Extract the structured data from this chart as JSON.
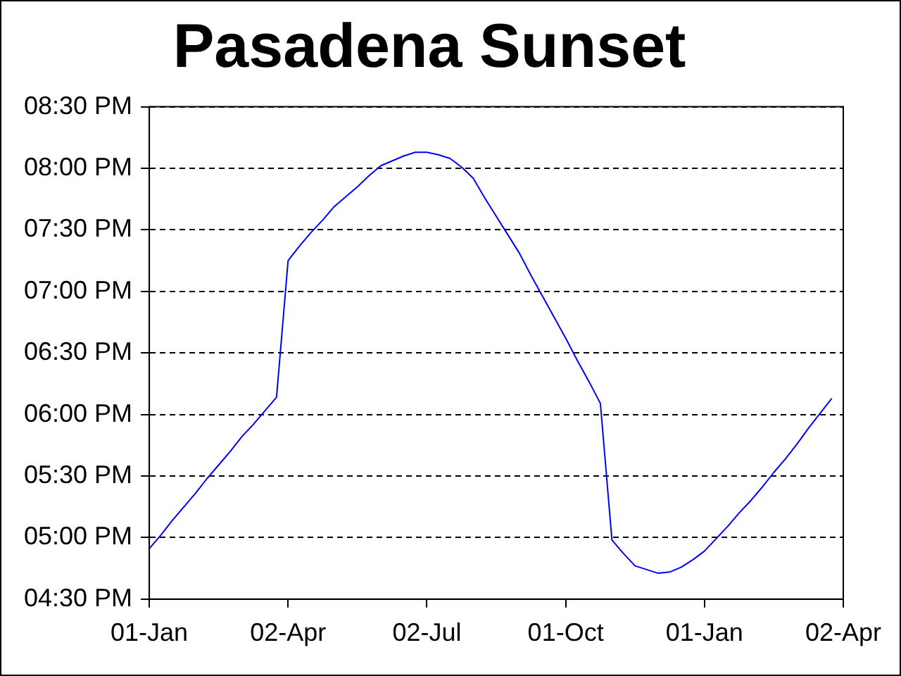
{
  "chart_data": {
    "type": "line",
    "title": "Pasadena Sunset",
    "categories": [
      "01-Jan",
      null,
      null,
      null,
      null,
      null,
      null,
      null,
      null,
      null,
      null,
      null,
      "02-Apr",
      null,
      null,
      null,
      null,
      null,
      null,
      null,
      null,
      null,
      null,
      null,
      "02-Jul",
      null,
      null,
      null,
      null,
      null,
      null,
      null,
      null,
      null,
      null,
      null,
      "01-Oct",
      null,
      null,
      null,
      null,
      null,
      null,
      null,
      null,
      null,
      null,
      null,
      "01-Jan",
      null,
      null,
      null,
      null,
      null,
      null,
      null,
      null,
      null,
      null,
      null,
      "02-Apr"
    ],
    "series": [
      {
        "color": "#0000ff",
        "values": [
          16.91,
          17.02,
          17.14,
          17.25,
          17.36,
          17.48,
          17.59,
          17.7,
          17.82,
          17.92,
          18.03,
          18.14,
          19.25,
          19.37,
          19.48,
          19.58,
          19.69,
          19.77,
          19.85,
          19.94,
          20.02,
          20.06,
          20.1,
          20.13,
          20.13,
          20.11,
          20.08,
          20.01,
          19.92,
          19.76,
          19.61,
          19.46,
          19.31,
          19.13,
          18.96,
          18.79,
          18.62,
          18.44,
          18.27,
          18.09,
          16.98,
          16.87,
          16.77,
          16.74,
          16.71,
          16.72,
          16.76,
          16.82,
          16.89,
          16.99,
          17.09,
          17.2,
          17.3,
          17.41,
          17.53,
          17.64,
          17.76,
          17.89,
          18.01,
          18.13,
          null
        ]
      }
    ],
    "ylim": [
      16.5,
      20.5
    ],
    "yticks": [
      {
        "value": 16.5,
        "label": "04:30 PM"
      },
      {
        "value": 17,
        "label": "05:00 PM"
      },
      {
        "value": 17.5,
        "label": "05:30 PM"
      },
      {
        "value": 18,
        "label": "06:00 PM"
      },
      {
        "value": 18.5,
        "label": "06:30 PM"
      },
      {
        "value": 19,
        "label": "07:00 PM"
      },
      {
        "value": 19.5,
        "label": "07:30 PM"
      },
      {
        "value": 20,
        "label": "08:00 PM"
      },
      {
        "value": 20.5,
        "label": "08:30 PM"
      }
    ],
    "grid": "y",
    "legend": false,
    "marker": "none",
    "line_style": "solid"
  }
}
